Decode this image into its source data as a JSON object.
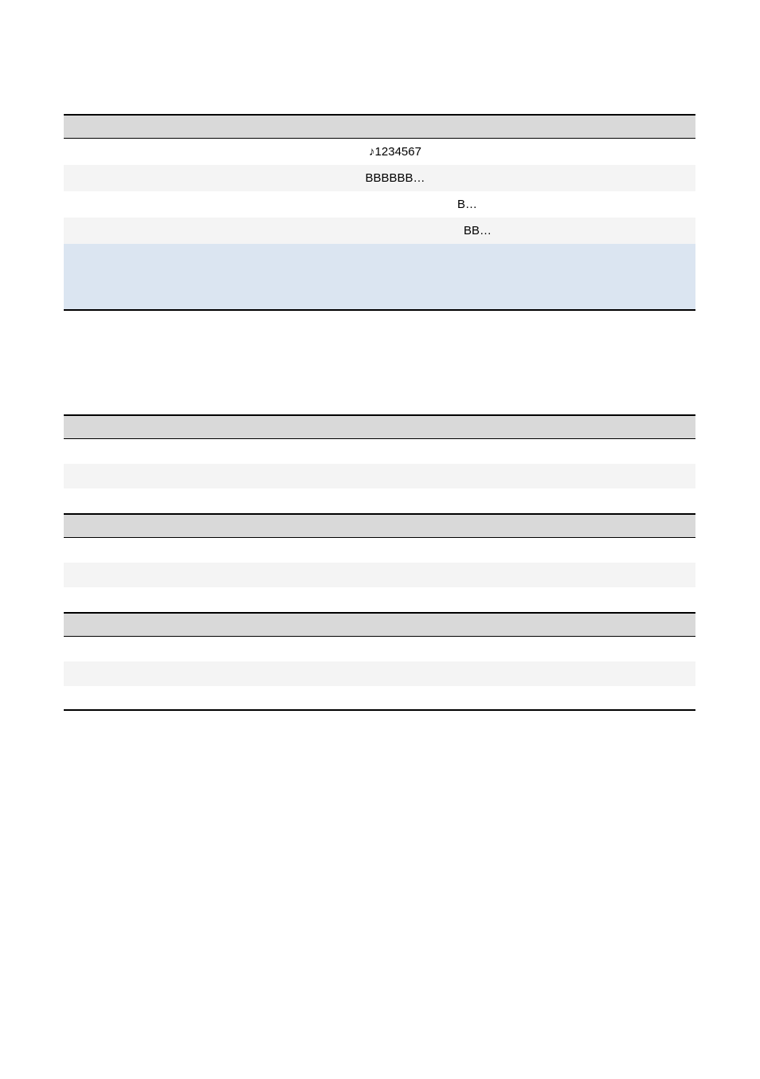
{
  "colors": {
    "page_background": "#ffffff",
    "header_background": "#d9d9d9",
    "row_alt_background": "#f4f4f4",
    "highlight_background": "#dbe5f1",
    "border": "#000000",
    "text": "#000000"
  },
  "table1": {
    "header": "",
    "rows": [
      {
        "text": "♪1234567",
        "align": "center-narrow"
      },
      {
        "text": "BBBBBB…",
        "align": "center-narrow"
      },
      {
        "text": "B…",
        "align": "offset1"
      },
      {
        "text": "BB…",
        "align": "offset2"
      }
    ],
    "highlight_row": ""
  },
  "table2": {
    "sections": [
      {
        "header": "",
        "rows": [
          "",
          "",
          ""
        ]
      },
      {
        "header": "",
        "rows": [
          "",
          "",
          ""
        ]
      },
      {
        "header": "",
        "rows": [
          "",
          "",
          ""
        ]
      }
    ]
  }
}
